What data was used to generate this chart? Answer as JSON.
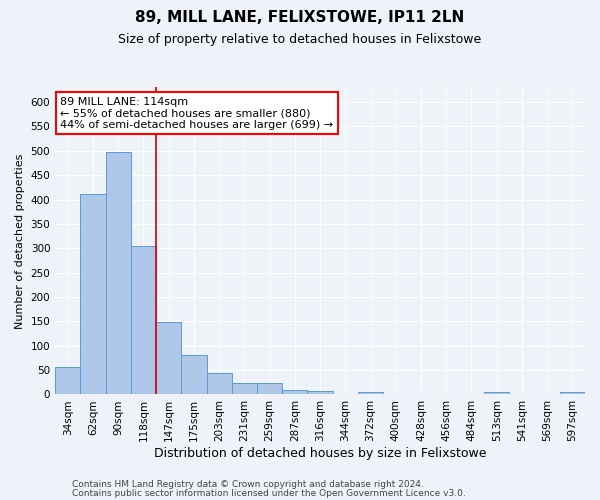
{
  "title": "89, MILL LANE, FELIXSTOWE, IP11 2LN",
  "subtitle": "Size of property relative to detached houses in Felixstowe",
  "xlabel": "Distribution of detached houses by size in Felixstowe",
  "ylabel": "Number of detached properties",
  "bar_labels": [
    "34sqm",
    "62sqm",
    "90sqm",
    "118sqm",
    "147sqm",
    "175sqm",
    "203sqm",
    "231sqm",
    "259sqm",
    "287sqm",
    "316sqm",
    "344sqm",
    "372sqm",
    "400sqm",
    "428sqm",
    "456sqm",
    "484sqm",
    "513sqm",
    "541sqm",
    "569sqm",
    "597sqm"
  ],
  "bar_values": [
    57,
    412,
    497,
    305,
    148,
    82,
    44,
    24,
    24,
    10,
    7,
    0,
    5,
    0,
    0,
    0,
    0,
    5,
    0,
    0,
    5
  ],
  "bar_color": "#aec6e8",
  "bar_edge_color": "#5b9bd5",
  "red_line_bar_index": 3,
  "annotation_line1": "89 MILL LANE: 114sqm",
  "annotation_line2": "← 55% of detached houses are smaller (880)",
  "annotation_line3": "44% of semi-detached houses are larger (699) →",
  "annotation_box_color": "white",
  "annotation_box_edge_color": "red",
  "red_line_color": "#cc0000",
  "ylim_max": 630,
  "yticks": [
    0,
    50,
    100,
    150,
    200,
    250,
    300,
    350,
    400,
    450,
    500,
    550,
    600
  ],
  "footer_line1": "Contains HM Land Registry data © Crown copyright and database right 2024.",
  "footer_line2": "Contains public sector information licensed under the Open Government Licence v3.0.",
  "background_color": "#eef2f9",
  "grid_color": "#ffffff",
  "title_fontsize": 11,
  "subtitle_fontsize": 9,
  "xlabel_fontsize": 9,
  "ylabel_fontsize": 8,
  "annotation_fontsize": 8,
  "footer_fontsize": 6.5,
  "tick_fontsize": 7.5
}
